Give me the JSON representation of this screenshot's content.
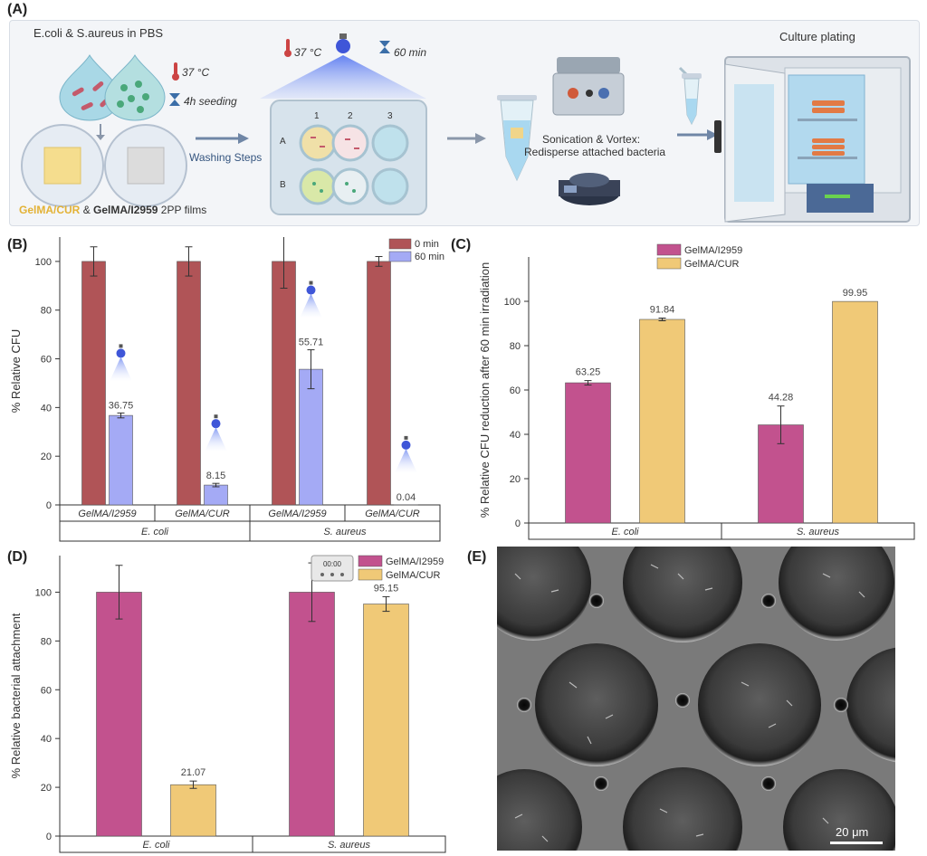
{
  "panel_labels": {
    "a": "(A)",
    "b": "(B)",
    "c": "(C)",
    "d": "(D)",
    "e": "(E)"
  },
  "schematic": {
    "bacteria_label": "E.coli & S.aureus in PBS",
    "temp1": "37 °C",
    "seeding": "4h seeding",
    "films_line": {
      "curcumin": "GelMA/CUR",
      "amp": "&",
      "photoinitiator": "GelMA/I2959",
      "suffix": "2PP films"
    },
    "washing": "Washing Steps",
    "temp2": "37 °C",
    "time": "60 min",
    "plate_cols": [
      "1",
      "2",
      "3"
    ],
    "plate_rows": [
      "A",
      "B"
    ],
    "sonication": "Sonication & Vortex:",
    "redisperse": "Redisperse attached bacteria",
    "culture": "Culture plating",
    "timer_display": "00:00"
  },
  "chart_data": [
    {
      "id": "B",
      "type": "bar",
      "ylabel": "% Relative CFU",
      "ylim": [
        0,
        110
      ],
      "yticks": [
        0,
        20,
        40,
        60,
        80,
        100
      ],
      "groups": [
        "E. coli",
        "S. aureus"
      ],
      "categories": [
        "GelMA/I2959",
        "GelMA/CUR",
        "GelMA/I2959",
        "GelMA/CUR"
      ],
      "series": [
        {
          "name": "0 min",
          "color": "#b05457",
          "values": [
            100,
            100,
            100,
            100
          ],
          "errors": [
            6,
            6,
            11,
            2
          ]
        },
        {
          "name": "60 min",
          "color": "#a4aaf5",
          "values": [
            36.75,
            8.15,
            55.71,
            0.04
          ],
          "errors": [
            1,
            0.7,
            8,
            0
          ],
          "labels": [
            "36.75",
            "8.15",
            "55.71",
            "0.04"
          ]
        }
      ],
      "legend_position": "top-right"
    },
    {
      "id": "C",
      "type": "bar",
      "ylabel": "% Relative CFU reduction after 60 min irradiation",
      "ylim": [
        0,
        120
      ],
      "yticks": [
        0,
        20,
        40,
        60,
        80,
        100
      ],
      "categories": [
        "E. coli",
        "S. aureus"
      ],
      "series": [
        {
          "name": "GelMA/I2959",
          "color": "#c2528e",
          "values": [
            63.25,
            44.28
          ],
          "errors": [
            1,
            8.5
          ],
          "labels": [
            "63.25",
            "44.28"
          ]
        },
        {
          "name": "GelMA/CUR",
          "color": "#f0c977",
          "values": [
            91.84,
            99.95
          ],
          "errors": [
            0.6,
            0
          ],
          "labels": [
            "91.84",
            "99.95"
          ]
        }
      ],
      "legend_position": "top-right"
    },
    {
      "id": "D",
      "type": "bar",
      "ylabel": "% Relative bacterial attachment",
      "ylim": [
        0,
        115
      ],
      "yticks": [
        0,
        20,
        40,
        60,
        80,
        100
      ],
      "categories": [
        "E. coli",
        "S. aureus"
      ],
      "series": [
        {
          "name": "GelMA/I2959",
          "color": "#c2528e",
          "values": [
            100,
            100
          ],
          "errors": [
            11,
            12
          ],
          "labels": [
            "",
            ""
          ]
        },
        {
          "name": "GelMA/CUR",
          "color": "#f0c977",
          "values": [
            21.07,
            95.15
          ],
          "errors": [
            1.5,
            3
          ],
          "labels": [
            "21.07",
            "95.15"
          ]
        }
      ],
      "legend_position": "top-right"
    }
  ],
  "sem": {
    "scale_bar": "20 μm"
  }
}
